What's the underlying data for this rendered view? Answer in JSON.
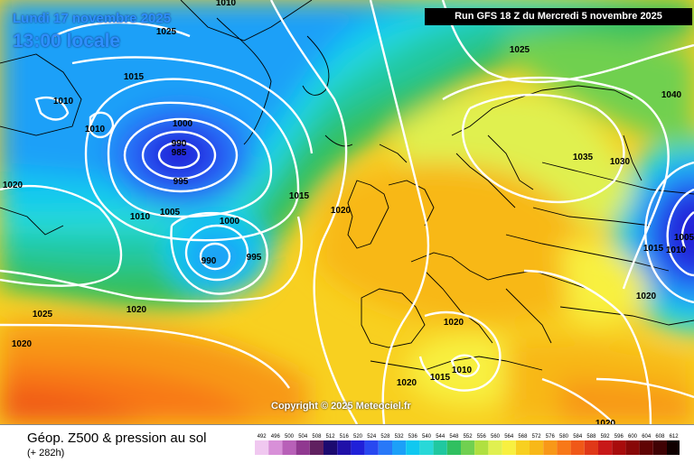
{
  "header": {
    "date_label": "Lundi 17 novembre 2025",
    "time_label": "13:00 locale",
    "run_label": "Run GFS 18 Z du Mercredi 5 novembre 2025"
  },
  "footer": {
    "title": "Géop. Z500 & pression au sol",
    "subtitle": "(+ 282h)",
    "copyright": "Copyright © 2025 Meteociel.fr"
  },
  "legend": {
    "values": [
      "492",
      "496",
      "500",
      "504",
      "508",
      "512",
      "516",
      "520",
      "524",
      "528",
      "532",
      "536",
      "540",
      "544",
      "548",
      "552",
      "556",
      "560",
      "564",
      "568",
      "572",
      "576",
      "580",
      "584",
      "588",
      "592",
      "596",
      "600",
      "604",
      "608",
      "612"
    ],
    "colors": [
      "#f0c8f0",
      "#d890d8",
      "#b860b8",
      "#903890",
      "#602060",
      "#1c0a70",
      "#2010a8",
      "#2020d8",
      "#2848f0",
      "#2878f8",
      "#1ca0f8",
      "#10c8f0",
      "#28d8d8",
      "#20c8a0",
      "#30c060",
      "#70d050",
      "#b0e040",
      "#e0f050",
      "#f8f040",
      "#f8d020",
      "#f8b818",
      "#f89818",
      "#f87818",
      "#f05818",
      "#e03818",
      "#c81818",
      "#a80c0c",
      "#880808",
      "#600404",
      "#400204",
      "#100000"
    ]
  },
  "map": {
    "isobar_color": "#ffffff",
    "pressure_labels": [
      {
        "text": "1010"
      },
      {
        "text": "1025"
      },
      {
        "text": "1015"
      },
      {
        "text": "1010"
      },
      {
        "text": "1010"
      },
      {
        "text": "1000"
      },
      {
        "text": "990"
      },
      {
        "text": "985"
      },
      {
        "text": "995"
      },
      {
        "text": "1020"
      },
      {
        "text": "1010"
      },
      {
        "text": "1005"
      },
      {
        "text": "1000"
      },
      {
        "text": "990"
      },
      {
        "text": "995"
      },
      {
        "text": "1015"
      },
      {
        "text": "1020"
      },
      {
        "text": "1025"
      },
      {
        "text": "1020"
      },
      {
        "text": "1020"
      },
      {
        "text": "1025"
      },
      {
        "text": "1040"
      },
      {
        "text": "1035"
      },
      {
        "text": "1030"
      },
      {
        "text": "1015"
      },
      {
        "text": "1005"
      },
      {
        "text": "1010"
      },
      {
        "text": "1020"
      },
      {
        "text": "1020"
      },
      {
        "text": "1010"
      },
      {
        "text": "1015"
      },
      {
        "text": "1020"
      },
      {
        "text": "1020"
      }
    ]
  }
}
